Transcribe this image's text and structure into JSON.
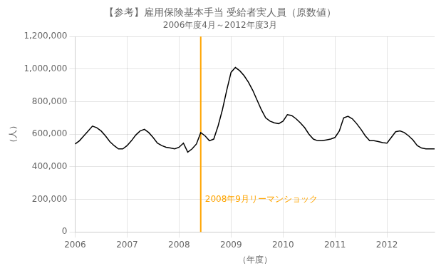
{
  "chart_data": {
    "type": "line",
    "title": "【参考】雇用保険基本手当 受給者実人員（原数値）",
    "subtitle": "2006年度4月～2012年度3月",
    "ylabel": "（人）",
    "xlabel": "（年度）",
    "categories": [
      "2006",
      null,
      null,
      null,
      null,
      null,
      null,
      null,
      null,
      null,
      null,
      null,
      "2007",
      null,
      null,
      null,
      null,
      null,
      null,
      null,
      null,
      null,
      null,
      null,
      "2008",
      null,
      null,
      null,
      null,
      null,
      null,
      null,
      null,
      null,
      null,
      null,
      "2009",
      null,
      null,
      null,
      null,
      null,
      null,
      null,
      null,
      null,
      null,
      null,
      "2010",
      null,
      null,
      null,
      null,
      null,
      null,
      null,
      null,
      null,
      null,
      null,
      "2011",
      null,
      null,
      null,
      null,
      null,
      null,
      null,
      null,
      null,
      null,
      null,
      "2012",
      null,
      null,
      null,
      null,
      null,
      null,
      null,
      null,
      null,
      null,
      null
    ],
    "values": [
      540000,
      560000,
      590000,
      620000,
      650000,
      640000,
      620000,
      590000,
      555000,
      530000,
      510000,
      510000,
      530000,
      560000,
      595000,
      620000,
      630000,
      610000,
      580000,
      545000,
      530000,
      520000,
      515000,
      510000,
      520000,
      545000,
      490000,
      510000,
      540000,
      610000,
      590000,
      560000,
      570000,
      650000,
      750000,
      870000,
      980000,
      1010000,
      990000,
      960000,
      920000,
      870000,
      810000,
      750000,
      700000,
      680000,
      670000,
      665000,
      680000,
      720000,
      715000,
      695000,
      670000,
      640000,
      600000,
      570000,
      560000,
      560000,
      565000,
      570000,
      580000,
      620000,
      700000,
      710000,
      695000,
      665000,
      630000,
      590000,
      560000,
      560000,
      555000,
      548000,
      545000,
      580000,
      615000,
      620000,
      610000,
      590000,
      565000,
      530000,
      515000,
      510000,
      510000,
      510000
    ],
    "color": "#000000",
    "ylim": [
      0,
      1200000
    ],
    "yticks": [
      0,
      {
        "value": 200000,
        "label": "200,000"
      },
      {
        "value": 400000,
        "label": "400,000"
      },
      {
        "value": 600000,
        "label": "600,000"
      },
      {
        "value": 800000,
        "label": "800,000"
      },
      {
        "value": 1000000,
        "label": "1,000,000"
      },
      {
        "value": 1200000,
        "label": "1,200,000"
      }
    ],
    "grid": true,
    "annotations": [
      {
        "text": "2008年9月リーマンショック",
        "x": 29,
        "y": 200000,
        "color": "#FFA500"
      }
    ]
  }
}
